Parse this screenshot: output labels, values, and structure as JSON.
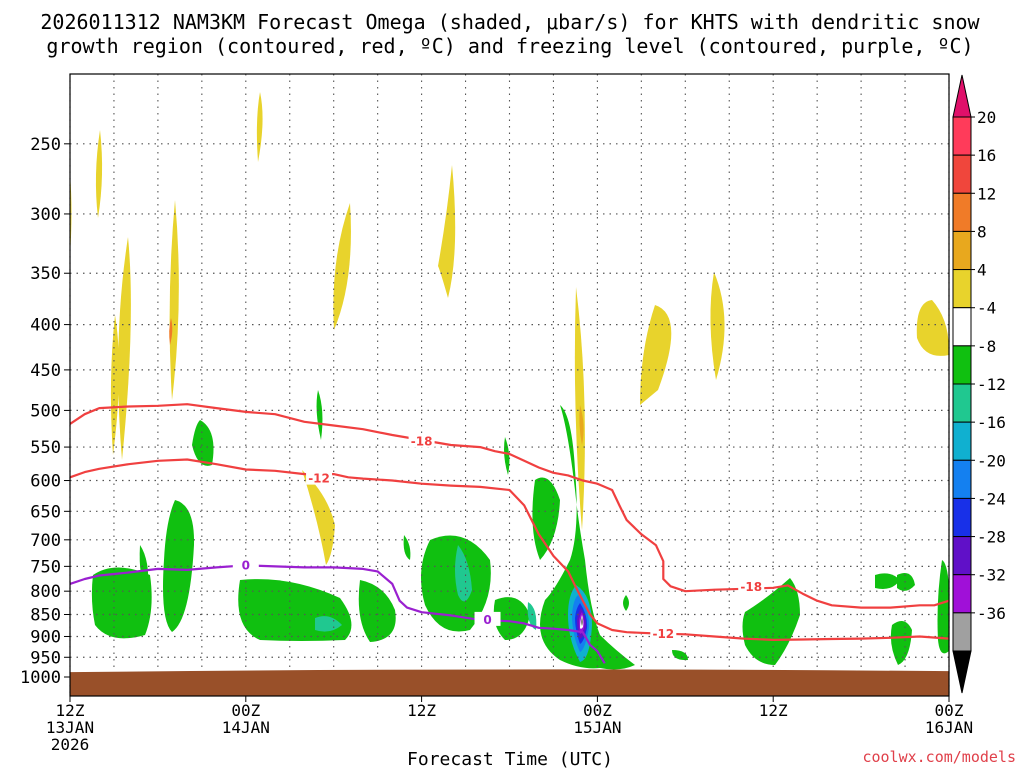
{
  "chart_data": {
    "type": "contour-time-height",
    "title_line1": "2026011312 NAM3KM Forecast Omega (shaded, μbar/s) for KHTS with dendritic snow",
    "title_line2": "growth region (contoured, red, ºC) and freezing level (contoured, purple, ºC)",
    "xlabel": "Forecast Time (UTC)",
    "credit": "coolwx.com/models",
    "x_unit": "forecast hours",
    "xlim": [
      0,
      60
    ],
    "x_ticks": [
      {
        "hour": 0,
        "line1": "12Z",
        "line2": "13JAN",
        "line3": "2026"
      },
      {
        "hour": 12,
        "line1": "00Z",
        "line2": "14JAN",
        "line3": ""
      },
      {
        "hour": 24,
        "line1": "12Z",
        "line2": "",
        "line3": ""
      },
      {
        "hour": 36,
        "line1": "00Z",
        "line2": "15JAN",
        "line3": ""
      },
      {
        "hour": 48,
        "line1": "12Z",
        "line2": "",
        "line3": ""
      },
      {
        "hour": 60,
        "line1": "00Z",
        "line2": "16JAN",
        "line3": ""
      }
    ],
    "y_unit": "hPa",
    "ylim": [
      1000,
      200
    ],
    "y_ticks": [
      250,
      300,
      350,
      400,
      450,
      500,
      550,
      600,
      650,
      700,
      750,
      800,
      850,
      900,
      950,
      1000
    ],
    "ground_hpa": 985,
    "colorbar": {
      "labels": [
        "20",
        "16",
        "12",
        "8",
        "4",
        "-4",
        "-8",
        "-12",
        "-16",
        "-20",
        "-24",
        "-28",
        "-32",
        "-36"
      ],
      "colors": [
        "#ff3b5a",
        "#f0463c",
        "#f07b28",
        "#e8a81e",
        "#e8d32c",
        "#ffffff",
        "#10c010",
        "#20c890",
        "#10b0d0",
        "#1480f0",
        "#1830e8",
        "#6010c8",
        "#a010d8",
        "#a0a0a0"
      ],
      "top_arrow_color": "#e0106a",
      "bottom_arrow_color": "#000000"
    },
    "series": [
      {
        "name": "-18",
        "color": "#f04040",
        "points": [
          [
            0,
            518
          ],
          [
            1,
            505
          ],
          [
            2,
            497
          ],
          [
            4,
            495
          ],
          [
            6,
            494
          ],
          [
            8,
            492
          ],
          [
            10,
            497
          ],
          [
            12,
            502
          ],
          [
            14,
            505
          ],
          [
            16,
            515
          ],
          [
            18,
            520
          ],
          [
            20,
            525
          ],
          [
            22,
            533
          ],
          [
            24,
            540
          ],
          [
            26,
            547
          ],
          [
            28,
            550
          ],
          [
            29,
            556
          ],
          [
            30,
            560
          ],
          [
            31,
            570
          ],
          [
            32,
            580
          ],
          [
            33,
            588
          ],
          [
            34,
            592
          ],
          [
            35,
            600
          ],
          [
            36,
            605
          ],
          [
            37,
            615
          ],
          [
            37.5,
            640
          ],
          [
            38,
            665
          ],
          [
            39,
            690
          ],
          [
            40,
            710
          ],
          [
            40.5,
            740
          ],
          [
            40.5,
            775
          ],
          [
            41,
            790
          ],
          [
            42,
            800
          ],
          [
            44,
            797
          ],
          [
            46,
            795
          ],
          [
            48,
            793
          ],
          [
            49,
            788
          ],
          [
            50,
            805
          ],
          [
            51,
            820
          ],
          [
            52,
            830
          ],
          [
            54,
            835
          ],
          [
            56,
            835
          ],
          [
            58,
            830
          ],
          [
            59,
            830
          ],
          [
            60,
            820
          ]
        ],
        "labels": [
          {
            "text": "-18",
            "hour": 24,
            "hpa": 542
          },
          {
            "text": "-18",
            "hour": 46.5,
            "hpa": 791
          }
        ]
      },
      {
        "name": "-12",
        "color": "#f04040",
        "points": [
          [
            0,
            595
          ],
          [
            1,
            587
          ],
          [
            2,
            582
          ],
          [
            4,
            575
          ],
          [
            6,
            570
          ],
          [
            8,
            568
          ],
          [
            10,
            575
          ],
          [
            12,
            583
          ],
          [
            14,
            585
          ],
          [
            16,
            590
          ],
          [
            18,
            590
          ],
          [
            19,
            595
          ],
          [
            20,
            597
          ],
          [
            22,
            600
          ],
          [
            24,
            605
          ],
          [
            26,
            608
          ],
          [
            28,
            610
          ],
          [
            30,
            615
          ],
          [
            31,
            640
          ],
          [
            32,
            690
          ],
          [
            33,
            730
          ],
          [
            34,
            760
          ],
          [
            34.5,
            790
          ],
          [
            35,
            820
          ],
          [
            35.5,
            850
          ],
          [
            36,
            870
          ],
          [
            37,
            885
          ],
          [
            38,
            890
          ],
          [
            40,
            893
          ],
          [
            42,
            895
          ],
          [
            44,
            900
          ],
          [
            46,
            905
          ],
          [
            48,
            908
          ],
          [
            50,
            907
          ],
          [
            52,
            906
          ],
          [
            54,
            905
          ],
          [
            56,
            903
          ],
          [
            58,
            900
          ],
          [
            60,
            905
          ]
        ],
        "labels": [
          {
            "text": "-12",
            "hour": 17,
            "hpa": 597
          },
          {
            "text": "-12",
            "hour": 40.5,
            "hpa": 894
          }
        ]
      },
      {
        "name": "0",
        "color": "#9a20d0",
        "points": [
          [
            0,
            785
          ],
          [
            1,
            775
          ],
          [
            2,
            768
          ],
          [
            3,
            765
          ],
          [
            4,
            762
          ],
          [
            6,
            755
          ],
          [
            8,
            757
          ],
          [
            10,
            752
          ],
          [
            12,
            748
          ],
          [
            14,
            750
          ],
          [
            16,
            752
          ],
          [
            18,
            752
          ],
          [
            20,
            755
          ],
          [
            21,
            760
          ],
          [
            22,
            785
          ],
          [
            22.5,
            820
          ],
          [
            23,
            835
          ],
          [
            24,
            845
          ],
          [
            26,
            852
          ],
          [
            28,
            862
          ],
          [
            30,
            865
          ],
          [
            31,
            870
          ],
          [
            32,
            880
          ],
          [
            33,
            882
          ],
          [
            34,
            885
          ],
          [
            35,
            890
          ],
          [
            35.5,
            920
          ],
          [
            36,
            935
          ],
          [
            36.5,
            965
          ]
        ],
        "labels": [
          {
            "text": "0",
            "hour": 12,
            "hpa": 748
          },
          {
            "text": "0",
            "hour": 28.5,
            "hpa": 862
          }
        ]
      }
    ]
  }
}
